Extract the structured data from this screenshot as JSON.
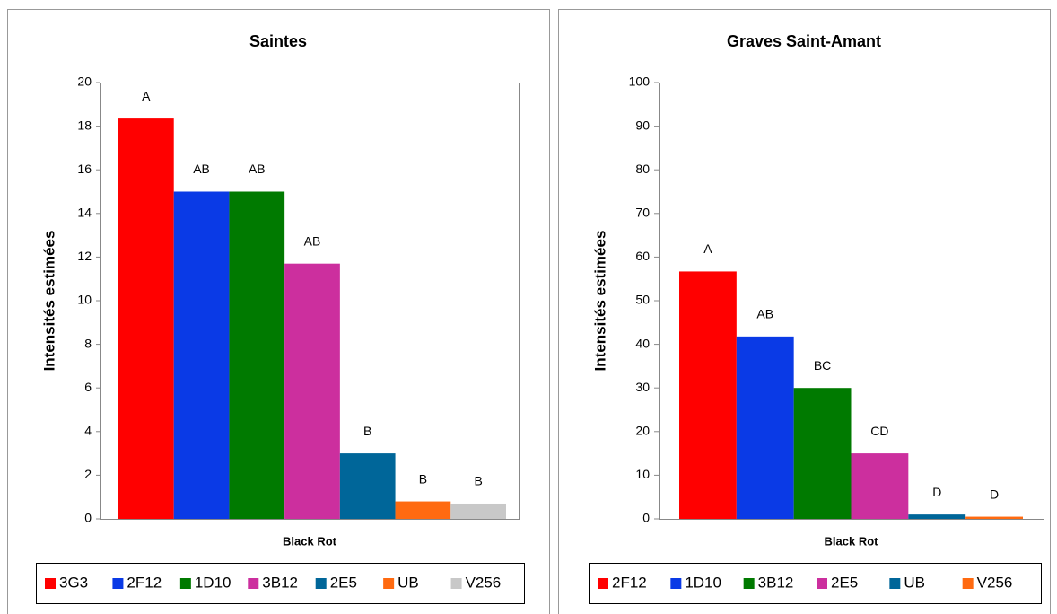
{
  "chart_data": [
    {
      "type": "bar",
      "title": "Saintes",
      "y_label": "Intensités estimées",
      "categories": [
        "Black Rot"
      ],
      "ylim": [
        0,
        20
      ],
      "yticks": [
        0,
        2,
        4,
        6,
        8,
        10,
        12,
        14,
        16,
        18,
        20
      ],
      "legend": "bottom",
      "series": [
        {
          "name": "3G3",
          "color": "#ff0000",
          "values": [
            18.35
          ],
          "significance": "A"
        },
        {
          "name": "2F12",
          "color": "#0a3ae6",
          "values": [
            15
          ],
          "significance": "AB"
        },
        {
          "name": "1D10",
          "color": "#007a00",
          "values": [
            15
          ],
          "significance": "AB"
        },
        {
          "name": "3B12",
          "color": "#cc2f9e",
          "values": [
            11.7
          ],
          "significance": "AB"
        },
        {
          "name": "2E5",
          "color": "#006699",
          "values": [
            3
          ],
          "significance": "B"
        },
        {
          "name": "UB",
          "color": "#ff6a10",
          "values": [
            0.8
          ],
          "significance": "B"
        },
        {
          "name": "V256",
          "color": "#c8c8c8",
          "values": [
            0.7
          ],
          "significance": "B"
        }
      ]
    },
    {
      "type": "bar",
      "title": "Graves Saint-Amant",
      "y_label": "Intensités estimées",
      "categories": [
        "Black Rot"
      ],
      "ylim": [
        0,
        100
      ],
      "yticks": [
        0,
        10,
        20,
        30,
        40,
        50,
        60,
        70,
        80,
        90,
        100
      ],
      "legend": "bottom",
      "series": [
        {
          "name": "2F12",
          "color": "#ff0000",
          "values": [
            56.7
          ],
          "significance": "A"
        },
        {
          "name": "1D10",
          "color": "#0a3ae6",
          "values": [
            41.8
          ],
          "significance": "AB"
        },
        {
          "name": "3B12",
          "color": "#007a00",
          "values": [
            30
          ],
          "significance": "BC"
        },
        {
          "name": "2E5",
          "color": "#cc2f9e",
          "values": [
            15
          ],
          "significance": "CD"
        },
        {
          "name": "UB",
          "color": "#006699",
          "values": [
            1
          ],
          "significance": "D"
        },
        {
          "name": "V256",
          "color": "#ff6a10",
          "values": [
            0.5
          ],
          "significance": "D"
        }
      ]
    }
  ]
}
